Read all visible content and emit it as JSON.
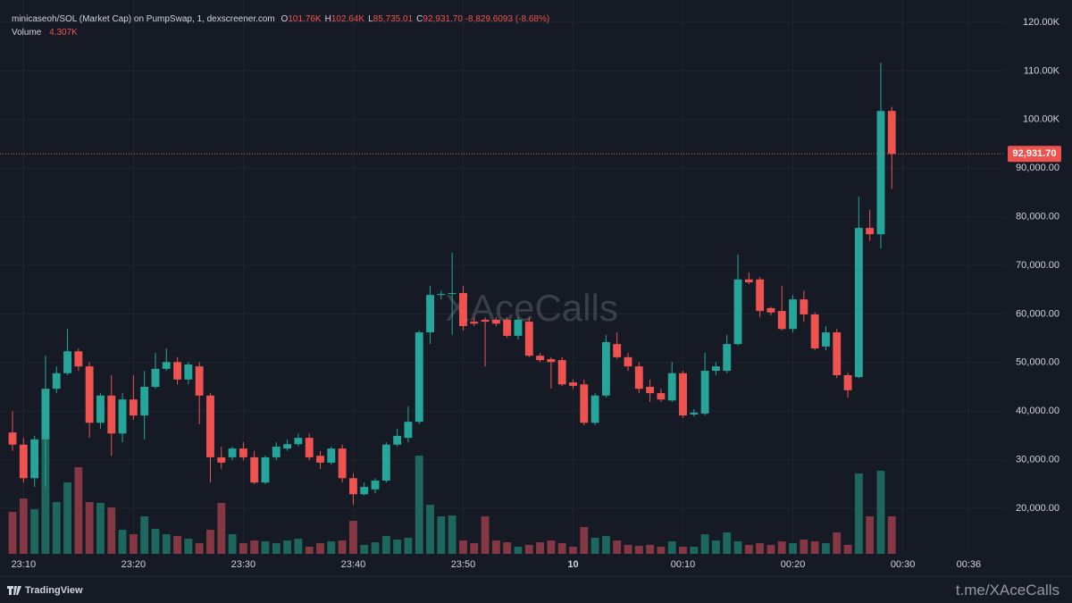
{
  "chart_data": {
    "type": "candlestick",
    "title": "minicaseoh/SOL (Market Cap) on PumpSwap, 1, dexscreener.com",
    "ohlc_legend": [
      {
        "key": "O",
        "label": "101.76K"
      },
      {
        "key": "H",
        "label": "102.64K"
      },
      {
        "key": "L",
        "label": "85,735.01"
      },
      {
        "key": "C",
        "label": "92,931.70"
      }
    ],
    "change_label": "-8,829.6093 (-8.68%)",
    "volume_title": "Volume",
    "volume_label": "4.307K",
    "watermark": "XAceCalls",
    "footer": "t.me/XAceCalls",
    "brand": "TradingView",
    "open": [
      35600,
      33100,
      26200,
      34200,
      44600,
      47800,
      52300,
      49200,
      37600,
      43200,
      35400,
      42400,
      39100,
      45000,
      48700,
      50100,
      46500,
      49200,
      43200,
      30500,
      30500,
      32300,
      30500,
      25300,
      30500,
      32300,
      33200,
      34500,
      30800,
      29400,
      32300,
      26200,
      22900,
      23900,
      25700,
      33100,
      34500,
      37800,
      56200,
      63900,
      64100,
      64300,
      58400,
      58800,
      58800,
      58800,
      55500,
      58400,
      51400,
      50700,
      50500,
      45900,
      45500,
      37600,
      43200,
      53800,
      51100,
      49200,
      45000,
      43700,
      42200,
      47800,
      39300,
      39500,
      48300,
      48300,
      53800,
      67100,
      67100,
      61200,
      60600,
      56900,
      63000,
      59900,
      53300,
      56200,
      47400,
      47000,
      77700,
      76400,
      101760
    ],
    "high": [
      40000,
      34500,
      34900,
      51400,
      49200,
      56900,
      52900,
      50100,
      43700,
      47400,
      43700,
      47400,
      48300,
      52000,
      52900,
      51100,
      50100,
      50100,
      43700,
      32700,
      32700,
      33600,
      31800,
      30800,
      33600,
      34200,
      35400,
      35400,
      31800,
      32700,
      33100,
      27200,
      25300,
      26200,
      33600,
      36400,
      41000,
      56600,
      65800,
      64800,
      72600,
      65800,
      59300,
      59300,
      59300,
      59300,
      59300,
      59300,
      52000,
      51100,
      51100,
      46500,
      46500,
      43700,
      55700,
      56200,
      52000,
      50100,
      46500,
      44600,
      50100,
      48300,
      40400,
      52000,
      50100,
      55700,
      72200,
      68500,
      67600,
      61500,
      65800,
      63900,
      64800,
      60300,
      57500,
      56900,
      47900,
      84100,
      81400,
      111700,
      102640
    ],
    "low": [
      31800,
      25300,
      24400,
      24400,
      43700,
      47400,
      48300,
      34500,
      36400,
      30800,
      33600,
      38200,
      34200,
      44600,
      48300,
      45500,
      45500,
      37300,
      25300,
      28100,
      29900,
      29900,
      25000,
      25000,
      29900,
      31800,
      32700,
      29900,
      28100,
      29000,
      25300,
      20700,
      22600,
      23100,
      25300,
      32700,
      33600,
      37300,
      53800,
      63000,
      55700,
      56600,
      57500,
      49200,
      57500,
      55100,
      54700,
      51100,
      50100,
      44600,
      45200,
      44600,
      37100,
      37100,
      42800,
      50700,
      48300,
      43700,
      41900,
      41900,
      41900,
      38600,
      38900,
      39100,
      47400,
      47800,
      53500,
      66100,
      59300,
      59700,
      56600,
      56200,
      58400,
      52500,
      52500,
      46800,
      42800,
      46800,
      75000,
      73500,
      85735.01
    ],
    "close": [
      33100,
      26200,
      34200,
      44600,
      47800,
      52300,
      49200,
      37600,
      43200,
      35400,
      42400,
      39100,
      45000,
      48700,
      50100,
      46500,
      49600,
      43200,
      30500,
      29400,
      32300,
      30500,
      25300,
      30500,
      32700,
      33200,
      34500,
      30500,
      29400,
      32300,
      26200,
      22900,
      24400,
      25700,
      33100,
      34900,
      37800,
      56200,
      63900,
      64100,
      64300,
      57500,
      58000,
      58400,
      58000,
      55500,
      58800,
      51400,
      50500,
      50100,
      45500,
      45200,
      37600,
      43200,
      54200,
      51100,
      49200,
      44600,
      43700,
      42400,
      47800,
      39100,
      39700,
      48300,
      49200,
      53800,
      67100,
      66500,
      60600,
      60300,
      56900,
      63000,
      59900,
      52900,
      56200,
      47400,
      44300,
      77700,
      76400,
      101760,
      92931.7
    ],
    "volume": [
      4820,
      6360,
      5130,
      13330,
      5950,
      8200,
      9950,
      5950,
      5850,
      5330,
      2770,
      2260,
      4310,
      2870,
      2260,
      2050,
      1740,
      1230,
      2770,
      5850,
      2260,
      1230,
      1540,
      1440,
      1230,
      1540,
      1740,
      820,
      1230,
      1440,
      1540,
      3790,
      1030,
      1330,
      2050,
      1640,
      1850,
      11280,
      5640,
      4310,
      4410,
      1540,
      1230,
      4310,
      1540,
      1330,
      820,
      1030,
      1330,
      1540,
      1230,
      820,
      3080,
      1850,
      2050,
      1540,
      1030,
      920,
      1030,
      820,
      1440,
      820,
      820,
      2260,
      1540,
      2460,
      1440,
      1030,
      1230,
      1030,
      1440,
      1230,
      1640,
      1440,
      1230,
      2460,
      1030,
      9230,
      4310,
      9540,
      4307
    ],
    "up_color": "#26a69a",
    "down_color": "#ef5350",
    "volume_up_color": "#1e675e",
    "volume_down_color": "#843843",
    "current_price": {
      "value": 92931.7,
      "label": "92,931.70"
    },
    "ylim": [
      10625,
      124600
    ],
    "yticks": [
      {
        "value": 20000,
        "label": "20,000.00"
      },
      {
        "value": 30000,
        "label": "30,000.00"
      },
      {
        "value": 40000,
        "label": "40,000.00"
      },
      {
        "value": 50000,
        "label": "50,000.00"
      },
      {
        "value": 60000,
        "label": "60,000.00"
      },
      {
        "value": 70000,
        "label": "70,000.00"
      },
      {
        "value": 80000,
        "label": "80,000.00"
      },
      {
        "value": 90000,
        "label": "90,000.00"
      },
      {
        "value": 100000,
        "label": "100.00K"
      },
      {
        "value": 110000,
        "label": "110.00K"
      },
      {
        "value": 120000,
        "label": "120.00K"
      }
    ],
    "xlim": [
      -1.14,
      90.3
    ],
    "xticks": [
      {
        "value": 1,
        "label": "23:10"
      },
      {
        "value": 11,
        "label": "23:20"
      },
      {
        "value": 21,
        "label": "23:30"
      },
      {
        "value": 31,
        "label": "23:40"
      },
      {
        "value": 41,
        "label": "23:50"
      },
      {
        "value": 51,
        "label": "10"
      },
      {
        "value": 61,
        "label": "00:10"
      },
      {
        "value": 71,
        "label": "00:20"
      },
      {
        "value": 81,
        "label": "00:30"
      },
      {
        "value": 87,
        "label": "00:36"
      }
    ],
    "volume_ylim": [
      0,
      14000
    ],
    "grid": true
  }
}
